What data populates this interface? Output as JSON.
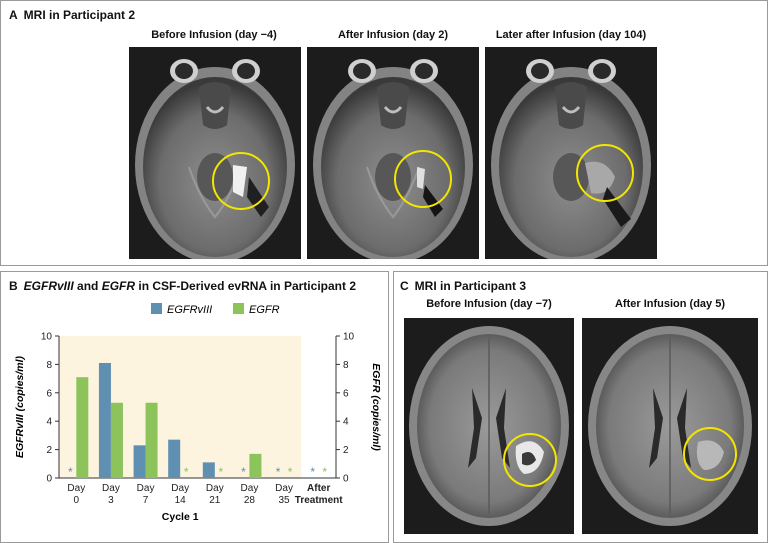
{
  "panel_a": {
    "letter": "A",
    "title": "MRI in Participant 2",
    "images": [
      {
        "caption": "Before Infusion (day −4)"
      },
      {
        "caption": "After Infusion (day 2)"
      },
      {
        "caption": "Later after Infusion (day 104)"
      }
    ]
  },
  "panel_b": {
    "letter": "B",
    "title_parts": [
      "EGFRvIII",
      " and ",
      "EGFR",
      " in CSF-Derived evRNA in Participant 2"
    ]
  },
  "panel_c": {
    "letter": "C",
    "title": "MRI in Participant 3",
    "images": [
      {
        "caption": "Before Infusion (day −7)"
      },
      {
        "caption": "After Infusion (day 5)"
      }
    ]
  },
  "colors": {
    "egfrviii": "#5f8fb1",
    "egfr": "#8cc35a",
    "cycle_shading": "#fdf4df",
    "circle": "#f2e600"
  },
  "chart_data": {
    "type": "bar",
    "categories": [
      "Day\n0",
      "Day\n3",
      "Day\n7",
      "Day\n14",
      "Day\n21",
      "Day\n28",
      "Day\n35",
      "After\nTreatment"
    ],
    "group_label": "Cycle 1",
    "series": [
      {
        "name": "EGFRvIII",
        "values": [
          0,
          8.1,
          2.3,
          2.7,
          1.1,
          0,
          0,
          0
        ],
        "undetected": [
          true,
          false,
          false,
          false,
          false,
          true,
          true,
          true
        ]
      },
      {
        "name": "EGFR",
        "values": [
          7.1,
          5.3,
          5.3,
          0,
          0,
          1.7,
          0,
          0
        ],
        "undetected": [
          false,
          false,
          false,
          true,
          true,
          false,
          true,
          true
        ]
      }
    ],
    "ylabel": "EGFRvIII (copies/ml)",
    "ylabel_right": "EGFR (copies/ml)",
    "ylim": [
      0,
      10
    ],
    "yticks": [
      "0",
      "2",
      "4",
      "6",
      "8",
      "10"
    ],
    "undetected_marker": "*",
    "grid": false,
    "legend_position": "top"
  }
}
